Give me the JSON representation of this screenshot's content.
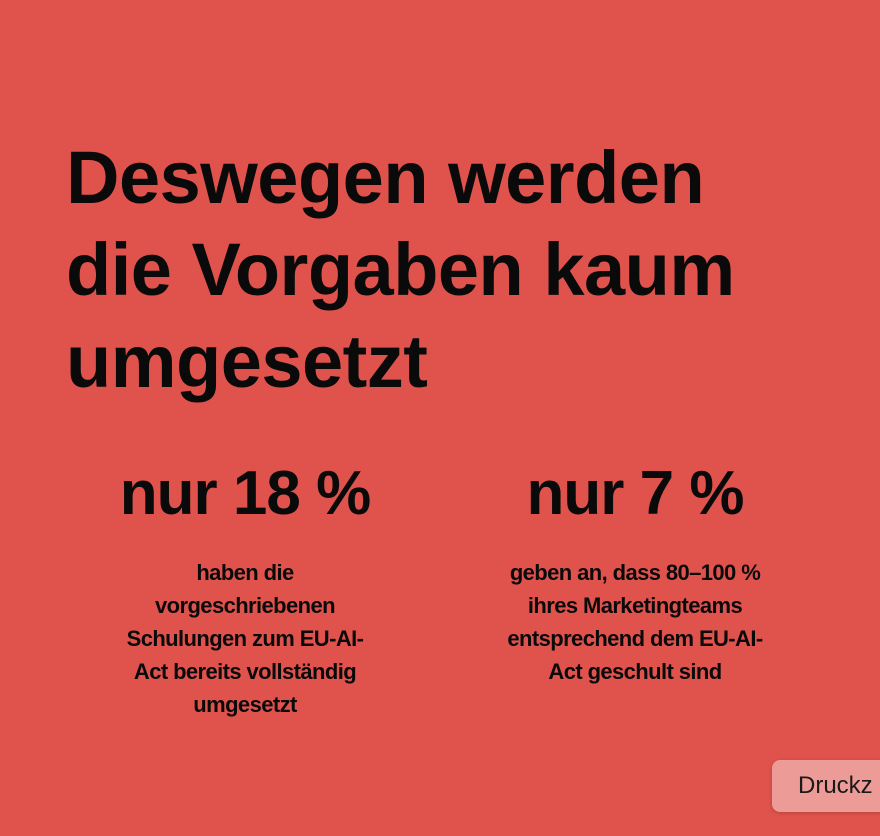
{
  "colors": {
    "background": "#e0534d",
    "text": "#0a0a0a",
    "tooltip": "#ec9b97"
  },
  "title": {
    "lines": [
      "Deswegen werden",
      "die Vorgaben kaum",
      "umgesetzt"
    ]
  },
  "stats": [
    {
      "value": "nur 18 %",
      "lines": [
        "haben die",
        "vorgeschriebenen",
        "Schulungen zum EU-AI-",
        "Act bereits vollständig",
        "umgesetzt"
      ]
    },
    {
      "value": "nur 7 %",
      "lines": [
        "geben an, dass 80–100 %",
        "ihres Marketingteams",
        "entsprechend dem EU-AI-",
        "Act geschult sind"
      ]
    }
  ],
  "tooltip": {
    "label": "Druckz"
  }
}
